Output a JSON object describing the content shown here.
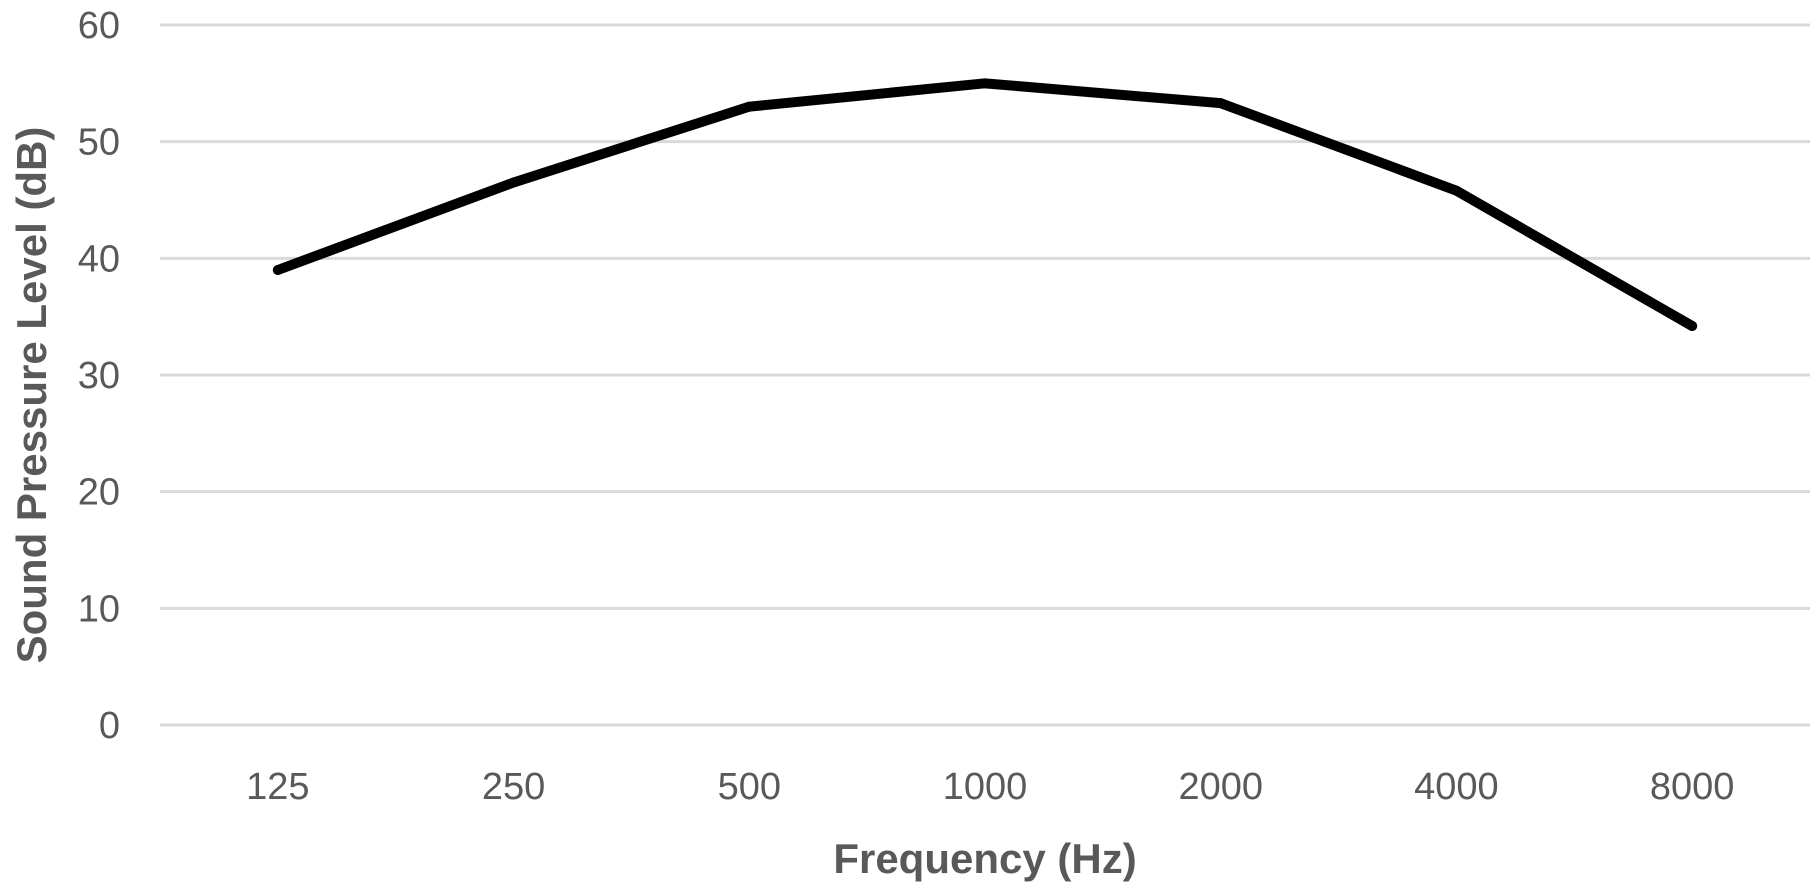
{
  "chart_data": {
    "type": "line",
    "title": "",
    "xlabel": "Frequency (Hz)",
    "ylabel": "Sound Pressure Level (dB)",
    "categories": [
      "125",
      "250",
      "500",
      "1000",
      "2000",
      "4000",
      "8000"
    ],
    "series": [
      {
        "values": [
          39,
          46.5,
          53,
          55,
          53.3,
          45.8,
          34.2
        ],
        "color": "#000000"
      }
    ],
    "ylim": [
      0,
      60
    ],
    "yticks": [
      "0",
      "10",
      "20",
      "30",
      "40",
      "50",
      "60"
    ],
    "grid": true,
    "legend": "none"
  }
}
